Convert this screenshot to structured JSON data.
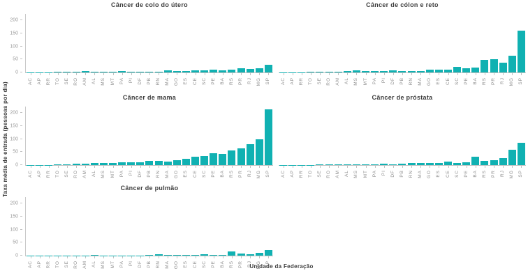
{
  "figure": {
    "ylabel": "Taxa média de entrada (pessoas por dia)",
    "xlabel": "Unidade da Federação",
    "accent_color": "#10b1b2",
    "spine_color": "#c2c2c2",
    "tick_text_color": "#9a9a9a",
    "title_text_color": "#3d3d3d"
  },
  "chart_data": [
    {
      "type": "bar",
      "title": "Câncer de colo do útero",
      "categories": [
        "AC",
        "AP",
        "RR",
        "TO",
        "SE",
        "RO",
        "AM",
        "AL",
        "MS",
        "MT",
        "PA",
        "PI",
        "DF",
        "PB",
        "RN",
        "MA",
        "GO",
        "ES",
        "CE",
        "SC",
        "PE",
        "BA",
        "RS",
        "PR",
        "RJ",
        "MG",
        "SP"
      ],
      "values": [
        1,
        1,
        1,
        2,
        2,
        2,
        5,
        4,
        3,
        3,
        5,
        3,
        3,
        4,
        4,
        8,
        5,
        6,
        7,
        8,
        10,
        8,
        12,
        17,
        13,
        16,
        30
      ],
      "yticks": [
        0,
        50,
        100,
        150,
        200
      ],
      "ylim": [
        0,
        225
      ],
      "show_y_ticklabels": true,
      "grid": false,
      "legend": "none"
    },
    {
      "type": "bar",
      "title": "Câncer de cólon e reto",
      "categories": [
        "AC",
        "AP",
        "RR",
        "TO",
        "SE",
        "RO",
        "AM",
        "AL",
        "MS",
        "MT",
        "PA",
        "PI",
        "DF",
        "PB",
        "RN",
        "MA",
        "GO",
        "ES",
        "CE",
        "SC",
        "PE",
        "BA",
        "RS",
        "PR",
        "RJ",
        "MG",
        "SP"
      ],
      "values": [
        1,
        1,
        1,
        2,
        2,
        3,
        4,
        5,
        7,
        5,
        5,
        5,
        9,
        5,
        6,
        6,
        12,
        10,
        11,
        22,
        17,
        20,
        48,
        50,
        38,
        65,
        160
      ],
      "yticks": [
        0,
        50,
        100,
        150,
        200
      ],
      "ylim": [
        0,
        225
      ],
      "show_y_ticklabels": false,
      "grid": false,
      "legend": "none"
    },
    {
      "type": "bar",
      "title": "Câncer de mama",
      "categories": [
        "AC",
        "AP",
        "RR",
        "TO",
        "SE",
        "RO",
        "AM",
        "AL",
        "MS",
        "MT",
        "PA",
        "PI",
        "DF",
        "PB",
        "RN",
        "MA",
        "GO",
        "ES",
        "CE",
        "SC",
        "PE",
        "BA",
        "RS",
        "PR",
        "RJ",
        "MG",
        "SP"
      ],
      "values": [
        1,
        1,
        1,
        3,
        4,
        5,
        6,
        9,
        8,
        8,
        10,
        10,
        11,
        15,
        15,
        13,
        19,
        23,
        31,
        34,
        46,
        44,
        57,
        63,
        80,
        100,
        215
      ],
      "yticks": [
        0,
        50,
        100,
        150,
        200
      ],
      "ylim": [
        0,
        225
      ],
      "show_y_ticklabels": true,
      "grid": false,
      "legend": "none"
    },
    {
      "type": "bar",
      "title": "Câncer de próstata",
      "categories": [
        "AC",
        "AP",
        "RR",
        "TO",
        "SE",
        "RO",
        "AM",
        "AL",
        "MS",
        "MT",
        "PA",
        "PI",
        "DF",
        "PB",
        "RN",
        "MA",
        "GO",
        "ES",
        "CE",
        "SC",
        "PE",
        "BA",
        "RS",
        "PR",
        "RJ",
        "MG",
        "SP"
      ],
      "values": [
        1,
        1,
        1,
        1,
        2,
        2,
        2,
        3,
        3,
        4,
        3,
        6,
        4,
        6,
        7,
        7,
        7,
        9,
        13,
        8,
        10,
        32,
        17,
        19,
        26,
        60,
        85
      ],
      "yticks": [
        0,
        50,
        100,
        150,
        200
      ],
      "ylim": [
        0,
        225
      ],
      "show_y_ticklabels": false,
      "grid": false,
      "legend": "none"
    },
    {
      "type": "bar",
      "title": "Câncer de pulmão",
      "categories": [
        "AC",
        "AP",
        "RR",
        "TO",
        "SE",
        "RO",
        "AM",
        "AL",
        "MS",
        "MT",
        "PA",
        "PI",
        "DF",
        "PB",
        "RN",
        "MA",
        "GO",
        "ES",
        "CE",
        "SC",
        "PE",
        "BA",
        "RS",
        "PR",
        "RJ",
        "MG",
        "SP"
      ],
      "values": [
        1,
        1,
        1,
        1,
        1,
        1,
        1,
        2,
        1,
        1,
        1,
        1,
        1,
        2,
        5,
        3,
        2,
        2,
        2,
        6,
        3,
        3,
        16,
        8,
        6,
        12,
        22
      ],
      "yticks": [
        0,
        50,
        100,
        150,
        200
      ],
      "ylim": [
        0,
        225
      ],
      "show_y_ticklabels": true,
      "grid": false,
      "legend": "none"
    }
  ]
}
